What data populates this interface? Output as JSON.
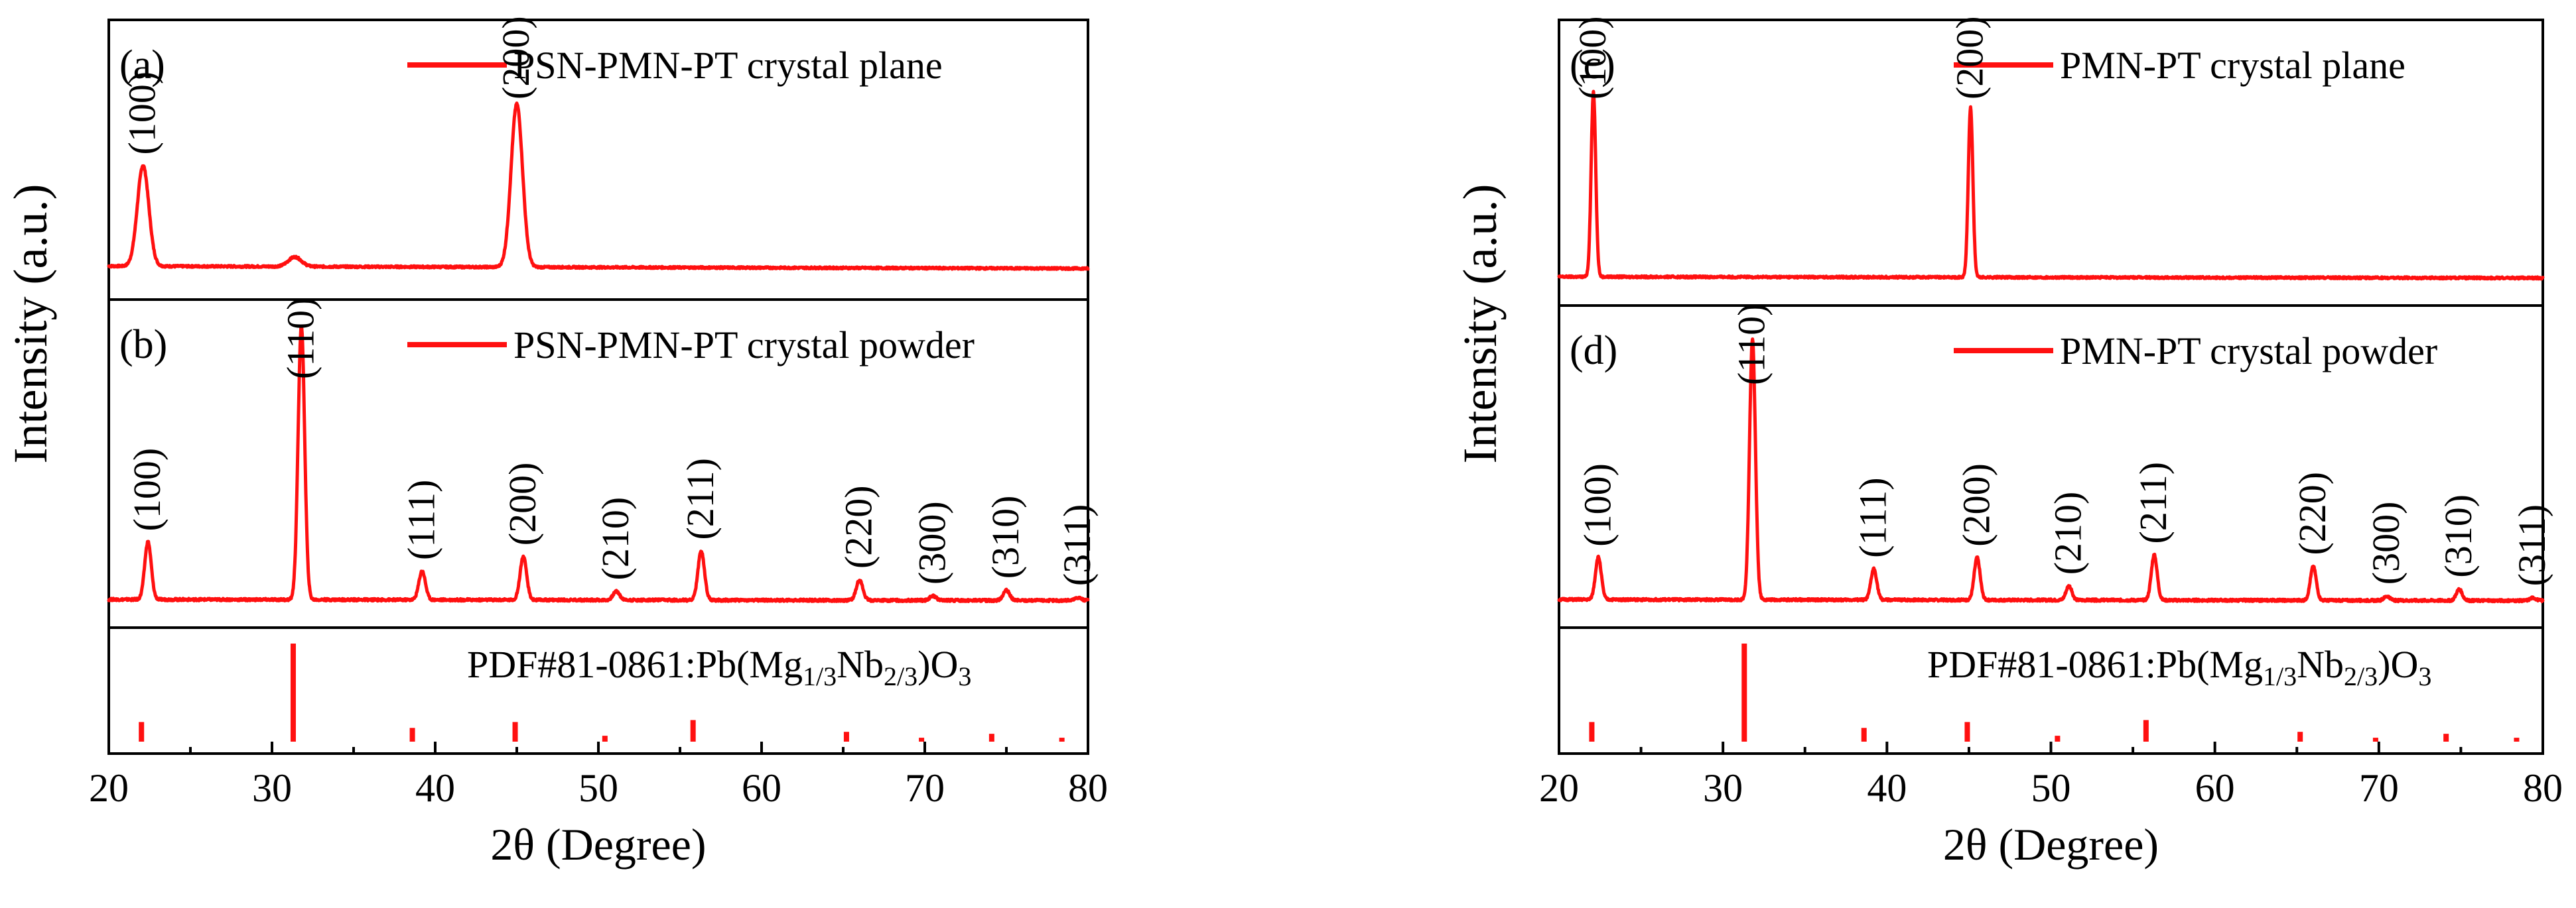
{
  "colors": {
    "trace": "#ff1010",
    "axis": "#000000"
  },
  "chart_data": [
    {
      "type": "line",
      "figure": "left",
      "xlabel": "2θ (Degree)",
      "ylabel": "Intensity (a.u.)",
      "xlim": [
        20,
        80
      ],
      "xticks": [
        "20",
        "30",
        "40",
        "50",
        "60",
        "70",
        "80"
      ],
      "panels": [
        {
          "tag": "(a)",
          "legend": "PSN-PMN-PT crystal plane",
          "kind": "xrd",
          "baseline": 0.04,
          "peaks": [
            {
              "x": 22.1,
              "height": 0.42,
              "width": 0.35,
              "label": "(100)"
            },
            {
              "x": 31.4,
              "height": 0.04,
              "width": 0.4,
              "label": ""
            },
            {
              "x": 45.0,
              "height": 0.68,
              "width": 0.35,
              "label": "(200)"
            }
          ]
        },
        {
          "tag": "(b)",
          "legend": "PSN-PMN-PT crystal powder",
          "kind": "xrd",
          "baseline": 0.015,
          "peaks": [
            {
              "x": 22.4,
              "height": 0.2,
              "width": 0.2,
              "label": "(100)"
            },
            {
              "x": 31.8,
              "height": 0.95,
              "width": 0.2,
              "label": "(110)"
            },
            {
              "x": 39.2,
              "height": 0.1,
              "width": 0.2,
              "label": "(111)"
            },
            {
              "x": 45.4,
              "height": 0.15,
              "width": 0.2,
              "label": "(200)"
            },
            {
              "x": 51.1,
              "height": 0.03,
              "width": 0.2,
              "label": "(210)"
            },
            {
              "x": 56.3,
              "height": 0.17,
              "width": 0.2,
              "label": "(211)"
            },
            {
              "x": 66.0,
              "height": 0.07,
              "width": 0.2,
              "label": "(220)"
            },
            {
              "x": 70.5,
              "height": 0.015,
              "width": 0.2,
              "label": "(300)"
            },
            {
              "x": 75.0,
              "height": 0.035,
              "width": 0.2,
              "label": "(310)"
            },
            {
              "x": 79.4,
              "height": 0.01,
              "width": 0.2,
              "label": "(311)"
            }
          ]
        },
        {
          "tag": "",
          "legend": "",
          "kind": "sticks",
          "reference": {
            "prefix": "PDF#81-0861:Pb(Mg",
            "sub1": "1/3",
            "mid": "Nb",
            "sub2": "2/3",
            "close": ")O",
            "sub3": "3"
          },
          "sticks": [
            {
              "x": 22.0,
              "h": 0.2
            },
            {
              "x": 31.3,
              "h": 1.0
            },
            {
              "x": 38.6,
              "h": 0.14
            },
            {
              "x": 44.9,
              "h": 0.2
            },
            {
              "x": 50.4,
              "h": 0.06
            },
            {
              "x": 55.8,
              "h": 0.22
            },
            {
              "x": 65.2,
              "h": 0.1
            },
            {
              "x": 69.8,
              "h": 0.04
            },
            {
              "x": 74.1,
              "h": 0.08
            },
            {
              "x": 78.4,
              "h": 0.04
            }
          ]
        }
      ]
    },
    {
      "type": "line",
      "figure": "right",
      "xlabel": "2θ (Degree)",
      "ylabel": "Intensity (a.u.)",
      "xlim": [
        20,
        80
      ],
      "xticks": [
        "20",
        "30",
        "40",
        "50",
        "60",
        "70",
        "80"
      ],
      "panels": [
        {
          "tag": "(c)",
          "legend": "PMN-PT crystal plane",
          "kind": "xrd",
          "baseline": 0.02,
          "peaks": [
            {
              "x": 22.1,
              "height": 0.75,
              "width": 0.14,
              "label": "(100)"
            },
            {
              "x": 45.1,
              "height": 0.69,
              "width": 0.14,
              "label": "(200)"
            }
          ]
        },
        {
          "tag": "(d)",
          "legend": "PMN-PT crystal powder",
          "kind": "xrd",
          "baseline": 0.015,
          "peaks": [
            {
              "x": 22.4,
              "height": 0.15,
              "width": 0.18,
              "label": "(100)"
            },
            {
              "x": 31.8,
              "height": 0.92,
              "width": 0.18,
              "label": "(110)"
            },
            {
              "x": 39.2,
              "height": 0.11,
              "width": 0.18,
              "label": "(111)"
            },
            {
              "x": 45.5,
              "height": 0.15,
              "width": 0.18,
              "label": "(200)"
            },
            {
              "x": 51.1,
              "height": 0.05,
              "width": 0.18,
              "label": "(210)"
            },
            {
              "x": 56.3,
              "height": 0.16,
              "width": 0.18,
              "label": "(211)"
            },
            {
              "x": 66.0,
              "height": 0.12,
              "width": 0.18,
              "label": "(220)"
            },
            {
              "x": 70.5,
              "height": 0.015,
              "width": 0.18,
              "label": "(300)"
            },
            {
              "x": 74.9,
              "height": 0.04,
              "width": 0.18,
              "label": "(310)"
            },
            {
              "x": 79.4,
              "height": 0.01,
              "width": 0.18,
              "label": "(311)"
            }
          ]
        },
        {
          "tag": "",
          "legend": "",
          "kind": "sticks",
          "reference": {
            "prefix": "PDF#81-0861:Pb(Mg",
            "sub1": "1/3",
            "mid": "Nb",
            "sub2": "2/3",
            "close": ")O",
            "sub3": "3"
          },
          "sticks": [
            {
              "x": 22.0,
              "h": 0.2
            },
            {
              "x": 31.3,
              "h": 1.0
            },
            {
              "x": 38.6,
              "h": 0.14
            },
            {
              "x": 44.9,
              "h": 0.2
            },
            {
              "x": 50.4,
              "h": 0.06
            },
            {
              "x": 55.8,
              "h": 0.22
            },
            {
              "x": 65.2,
              "h": 0.1
            },
            {
              "x": 69.8,
              "h": 0.04
            },
            {
              "x": 74.1,
              "h": 0.08
            },
            {
              "x": 78.4,
              "h": 0.04
            }
          ]
        }
      ]
    }
  ]
}
